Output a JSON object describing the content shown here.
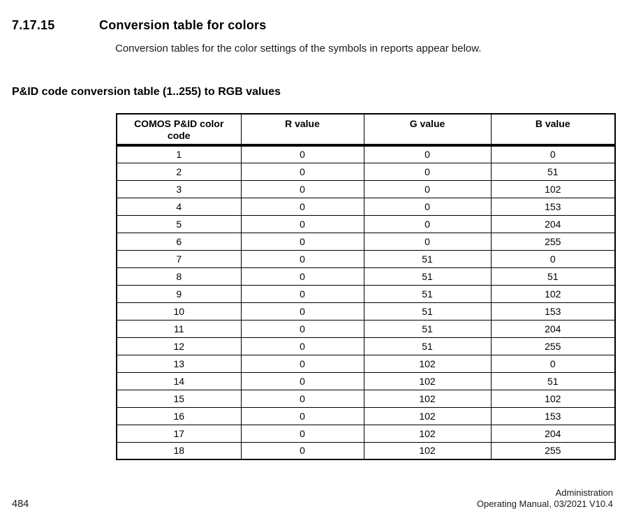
{
  "page": {
    "section_number": "7.17.15",
    "section_title": "Conversion table for colors",
    "intro": "Conversion tables for the color settings of the symbols in reports appear below.",
    "table_heading": "P&ID code conversion table (1..255) to RGB values"
  },
  "table": {
    "columns": [
      "COMOS P&ID color code",
      "R value",
      "G value",
      "B value"
    ],
    "rows": [
      [
        "1",
        "0",
        "0",
        "0"
      ],
      [
        "2",
        "0",
        "0",
        "51"
      ],
      [
        "3",
        "0",
        "0",
        "102"
      ],
      [
        "4",
        "0",
        "0",
        "153"
      ],
      [
        "5",
        "0",
        "0",
        "204"
      ],
      [
        "6",
        "0",
        "0",
        "255"
      ],
      [
        "7",
        "0",
        "51",
        "0"
      ],
      [
        "8",
        "0",
        "51",
        "51"
      ],
      [
        "9",
        "0",
        "51",
        "102"
      ],
      [
        "10",
        "0",
        "51",
        "153"
      ],
      [
        "11",
        "0",
        "51",
        "204"
      ],
      [
        "12",
        "0",
        "51",
        "255"
      ],
      [
        "13",
        "0",
        "102",
        "0"
      ],
      [
        "14",
        "0",
        "102",
        "51"
      ],
      [
        "15",
        "0",
        "102",
        "102"
      ],
      [
        "16",
        "0",
        "102",
        "153"
      ],
      [
        "17",
        "0",
        "102",
        "204"
      ],
      [
        "18",
        "0",
        "102",
        "255"
      ]
    ]
  },
  "footer": {
    "page_number": "484",
    "right_line1": "Administration",
    "right_line2": "Operating Manual, 03/2021 V10.4"
  }
}
